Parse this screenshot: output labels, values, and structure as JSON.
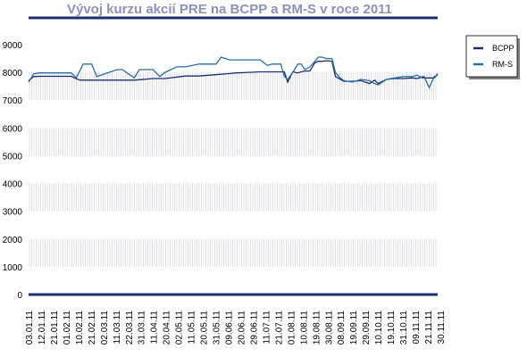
{
  "chart_data": {
    "type": "line",
    "title": "Vývoj kurzu akcií PRE na BCPP a RM-S v roce 2011",
    "xlabel": "",
    "ylabel": "",
    "ylim": [
      0,
      9000
    ],
    "yticks": [
      0,
      1000,
      2000,
      3000,
      4000,
      5000,
      6000,
      7000,
      8000,
      9000
    ],
    "x_tick_labels": [
      "03.01.11",
      "12.01.11",
      "21.01.11",
      "01.02.11",
      "10.02.11",
      "21.02.11",
      "02.03.11",
      "11.03.11",
      "22.03.11",
      "31.03.11",
      "11.04.11",
      "20.04.11",
      "02.05.11",
      "11.05.11",
      "20.05.11",
      "31.05.11",
      "09.06.11",
      "20.06.11",
      "29.06.11",
      "11.07.11",
      "21.07.11",
      "01.08.11",
      "10.08.11",
      "19.08.11",
      "30.08.11",
      "08.09.11",
      "19.09.11",
      "29.09.11",
      "10.10.11",
      "19.10.11",
      "31.10.11",
      "09.11.11",
      "21.11.11",
      "30.11.11"
    ],
    "grid": "vertical dotted",
    "legend_position": "right",
    "x_range": [
      0,
      240
    ],
    "series": [
      {
        "name": "BCPP",
        "color": "#1f2d6e",
        "x": [
          0,
          3,
          7,
          15,
          25,
          30,
          32,
          40,
          52,
          62,
          73,
          80,
          92,
          100,
          112,
          122,
          129,
          136,
          140,
          148,
          150,
          152,
          155,
          158,
          160,
          162,
          165,
          168,
          170,
          172,
          175,
          178,
          180,
          185,
          190,
          195,
          200,
          203,
          205,
          210,
          215,
          220,
          225,
          228,
          230,
          232,
          235,
          238,
          240
        ],
        "values": [
          7700,
          7850,
          7860,
          7860,
          7860,
          7720,
          7720,
          7720,
          7720,
          7720,
          7780,
          7780,
          7870,
          7870,
          7930,
          7980,
          8000,
          8020,
          8020,
          8020,
          8020,
          7650,
          8020,
          7980,
          8020,
          8050,
          8050,
          8350,
          8400,
          8400,
          8420,
          8400,
          7850,
          7680,
          7680,
          7700,
          7600,
          7720,
          7600,
          7750,
          7780,
          7780,
          7800,
          7780,
          7820,
          7800,
          7800,
          7800,
          7950
        ]
      },
      {
        "name": "RM-S",
        "color": "#2a6ea8",
        "x": [
          0,
          3,
          6,
          15,
          25,
          28,
          32,
          37,
          40,
          52,
          55,
          62,
          65,
          73,
          77,
          80,
          87,
          92,
          100,
          105,
          110,
          113,
          118,
          122,
          129,
          136,
          140,
          143,
          148,
          150,
          152,
          155,
          158,
          160,
          162,
          165,
          168,
          170,
          172,
          175,
          178,
          180,
          182,
          185,
          190,
          195,
          200,
          203,
          205,
          210,
          215,
          220,
          225,
          228,
          230,
          232,
          235,
          238,
          240
        ],
        "values": [
          7650,
          7950,
          7980,
          7980,
          7980,
          7800,
          8300,
          8300,
          7850,
          8100,
          8100,
          7800,
          8100,
          8100,
          7850,
          8000,
          8200,
          8200,
          8300,
          8300,
          8300,
          8550,
          8450,
          8450,
          8450,
          8450,
          8250,
          8300,
          8300,
          7850,
          7750,
          8000,
          8300,
          8300,
          8100,
          8200,
          8400,
          8550,
          8550,
          8500,
          8500,
          8000,
          7850,
          7700,
          7650,
          7750,
          7700,
          7600,
          7550,
          7750,
          7800,
          7850,
          7850,
          7900,
          7830,
          7860,
          7450,
          7850,
          7900
        ]
      }
    ]
  }
}
